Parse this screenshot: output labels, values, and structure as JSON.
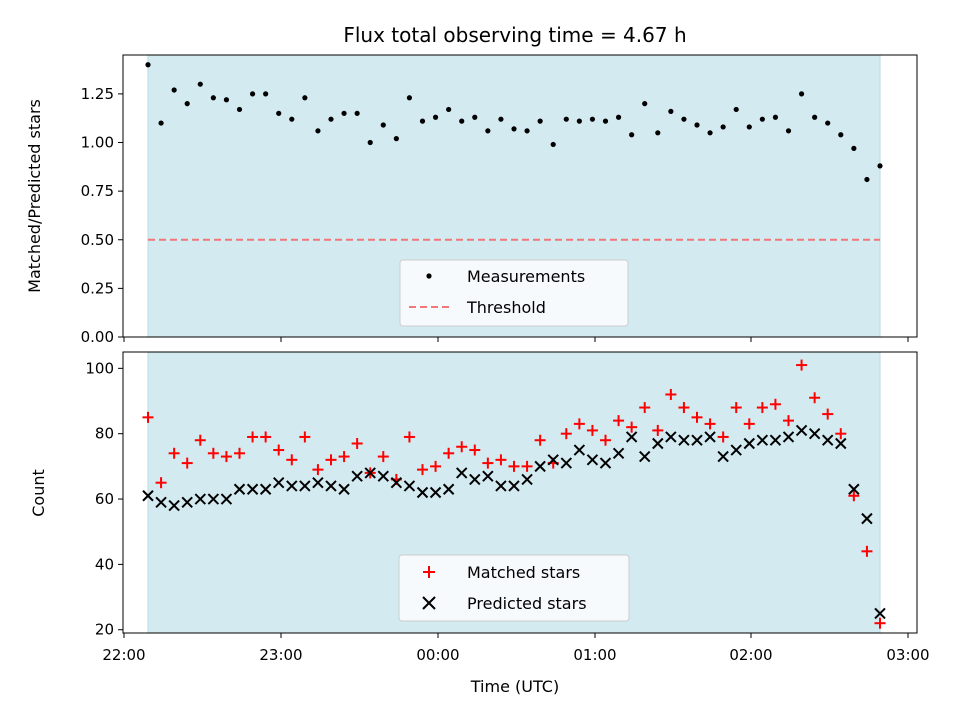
{
  "chart_data": {
    "title": "Flux total observing time = 4.67 h",
    "xlabel": "Time (UTC)",
    "x_ticks": [
      "22:00",
      "23:00",
      "00:00",
      "01:00",
      "02:00",
      "03:00"
    ],
    "shaded_region_color": "#d3eaf1",
    "panels": [
      {
        "type": "scatter",
        "ylabel": "Matched/Predicted stars",
        "ylim": [
          0,
          1.45
        ],
        "y_ticks": [
          "0.00",
          "0.25",
          "0.50",
          "0.75",
          "1.00",
          "1.25"
        ],
        "legend_position": "lower-center",
        "threshold": {
          "name": "Threshold",
          "value": 0.5,
          "color": "#f08080"
        },
        "series": [
          {
            "name": "Measurements",
            "color": "#000000",
            "marker": "dot",
            "values": [
              1.4,
              1.1,
              1.27,
              1.2,
              1.3,
              1.23,
              1.22,
              1.17,
              1.25,
              1.25,
              1.15,
              1.12,
              1.23,
              1.06,
              1.12,
              1.15,
              1.15,
              1.0,
              1.09,
              1.02,
              1.23,
              1.11,
              1.13,
              1.17,
              1.11,
              1.13,
              1.06,
              1.12,
              1.07,
              1.06,
              1.11,
              0.99,
              1.12,
              1.11,
              1.12,
              1.11,
              1.13,
              1.04,
              1.2,
              1.05,
              1.16,
              1.12,
              1.09,
              1.05,
              1.08,
              1.17,
              1.08,
              1.12,
              1.13,
              1.06,
              1.25,
              1.13,
              1.1,
              1.04,
              0.97,
              0.81,
              0.88
            ]
          }
        ]
      },
      {
        "type": "scatter",
        "ylabel": "Count",
        "ylim": [
          19,
          105
        ],
        "y_ticks": [
          "20",
          "40",
          "60",
          "80",
          "100"
        ],
        "legend_position": "lower-center",
        "series": [
          {
            "name": "Matched stars",
            "color": "#ff0000",
            "marker": "plus",
            "values": [
              85,
              65,
              74,
              71,
              78,
              74,
              73,
              74,
              79,
              79,
              75,
              72,
              79,
              69,
              72,
              73,
              77,
              68,
              73,
              66,
              79,
              69,
              70,
              74,
              76,
              75,
              71,
              72,
              70,
              70,
              78,
              71,
              80,
              83,
              81,
              78,
              84,
              82,
              88,
              81,
              92,
              88,
              85,
              83,
              79,
              88,
              83,
              88,
              89,
              84,
              101,
              91,
              86,
              80,
              61,
              44,
              22
            ]
          },
          {
            "name": "Predicted stars",
            "color": "#000000",
            "marker": "x",
            "values": [
              61,
              59,
              58,
              59,
              60,
              60,
              60,
              63,
              63,
              63,
              65,
              64,
              64,
              65,
              64,
              63,
              67,
              68,
              67,
              65,
              64,
              62,
              62,
              63,
              68,
              66,
              67,
              64,
              64,
              66,
              70,
              72,
              71,
              75,
              72,
              71,
              74,
              79,
              73,
              77,
              79,
              78,
              78,
              79,
              73,
              75,
              77,
              78,
              78,
              79,
              81,
              80,
              78,
              77,
              63,
              54,
              25
            ]
          }
        ]
      }
    ]
  }
}
